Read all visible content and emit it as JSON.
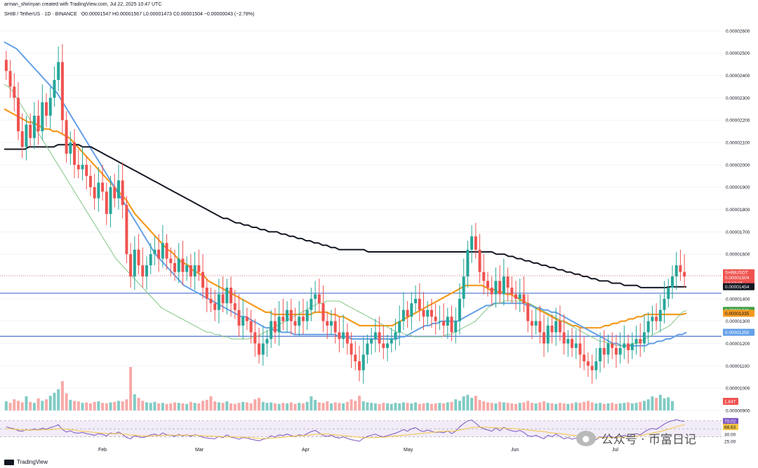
{
  "header": {
    "credit": "arman_shirinyan created with TradingView.com, Jul 22, 2025 10:47 UTC",
    "symbol_line": "SHIB / TetherUS · 1D · BINANCE",
    "ohlc": "O0.00001547 H0.00001567 L0.00001473 C0.00001504 −0.00000043 (−2.78%)"
  },
  "footer": {
    "brand": "TradingView"
  },
  "watermark": {
    "text": "公众号 · 币富日记"
  },
  "colors": {
    "up": "#26a69a",
    "down": "#ef5350",
    "up_volume": "#80cbc4",
    "down_volume": "#f7a9a7",
    "ma_fast": "#81c784",
    "ma_blue": "#64a0e8",
    "ma_orange": "#f59a1f",
    "ma_black": "#131722",
    "hline": "#5b7fd6",
    "rsi": "#7e57c2"
  },
  "price_labels": {
    "symbol": "SHIBUSDT",
    "last": "0.00001504",
    "countdown": "13:12:15",
    "ma200": "0.00001454",
    "ma_green": "0.00001348",
    "ma_orange": "0.00001335",
    "ma_blue": "0.00001250",
    "volume": "1.84T",
    "rsi_a": "70.02",
    "rsi_b": "68.63",
    "rsi_30": "30.00",
    "rsi_25": "25.00"
  },
  "chart_data": {
    "type": "candlestick",
    "title": "SHIB / TetherUS · 1D · BINANCE",
    "x_labels": [
      "Feb",
      "Mar",
      "Apr",
      "May",
      "Jun",
      "Jul"
    ],
    "y_ticks": [
      "0.00002600",
      "0.00002500",
      "0.00002400",
      "0.00002300",
      "0.00002200",
      "0.00002100",
      "0.00002000",
      "0.00001900",
      "0.00001800",
      "0.00001700",
      "0.00001600",
      "0.00001500",
      "0.00001400",
      "0.00001300",
      "0.00001200",
      "0.00001100",
      "0.00001000",
      "0.00000900"
    ],
    "ylim": [
      9e-06,
      2.65e-05
    ],
    "horizontal_lines": [
      1.425e-05,
      1.232e-05
    ],
    "closes": [
      2.42,
      2.35,
      2.3,
      2.15,
      2.08,
      2.18,
      2.12,
      2.22,
      2.15,
      2.28,
      2.22,
      2.3,
      2.38,
      2.46,
      2.2,
      2.05,
      2.1,
      2.0,
      1.98,
      2.0,
      1.95,
      1.9,
      1.85,
      1.92,
      1.88,
      1.78,
      1.9,
      1.85,
      1.93,
      1.82,
      1.6,
      1.5,
      1.62,
      1.55,
      1.5,
      1.55,
      1.6,
      1.62,
      1.58,
      1.65,
      1.58,
      1.56,
      1.52,
      1.58,
      1.52,
      1.55,
      1.5,
      1.55,
      1.52,
      1.45,
      1.4,
      1.38,
      1.35,
      1.42,
      1.38,
      1.45,
      1.38,
      1.35,
      1.28,
      1.32,
      1.3,
      1.25,
      1.2,
      1.15,
      1.2,
      1.22,
      1.3,
      1.25,
      1.32,
      1.3,
      1.35,
      1.3,
      1.28,
      1.32,
      1.3,
      1.35,
      1.4,
      1.42,
      1.38,
      1.3,
      1.28,
      1.3,
      1.25,
      1.22,
      1.25,
      1.2,
      1.15,
      1.12,
      1.08,
      1.15,
      1.2,
      1.22,
      1.25,
      1.2,
      1.18,
      1.2,
      1.22,
      1.25,
      1.3,
      1.35,
      1.32,
      1.38,
      1.4,
      1.35,
      1.32,
      1.35,
      1.32,
      1.3,
      1.3,
      1.28,
      1.32,
      1.25,
      1.3,
      1.4,
      1.5,
      1.62,
      1.68,
      1.62,
      1.52,
      1.48,
      1.45,
      1.42,
      1.48,
      1.42,
      1.5,
      1.45,
      1.42,
      1.4,
      1.42,
      1.38,
      1.3,
      1.28,
      1.3,
      1.25,
      1.2,
      1.28,
      1.25,
      1.3,
      1.25,
      1.2,
      1.22,
      1.18,
      1.2,
      1.15,
      1.12,
      1.1,
      1.08,
      1.12,
      1.18,
      1.15,
      1.2,
      1.18,
      1.15,
      1.18,
      1.2,
      1.17,
      1.2,
      1.22,
      1.2,
      1.25,
      1.3,
      1.32,
      1.3,
      1.35,
      1.4,
      1.45,
      1.5,
      1.55,
      1.52,
      1.5
    ],
    "series": [
      {
        "values": [
          2.25,
          2.24,
          2.23,
          2.22,
          2.21,
          2.2,
          2.19,
          2.19,
          2.18,
          2.17,
          2.16,
          2.16,
          2.15,
          2.15,
          2.14,
          2.13,
          2.12,
          2.1,
          2.08,
          2.06,
          2.04,
          2.02,
          2.0,
          1.98,
          1.96,
          1.94,
          1.92,
          1.9,
          1.88,
          1.86,
          1.84,
          1.81,
          1.78,
          1.76,
          1.74,
          1.72,
          1.7,
          1.68,
          1.66,
          1.64,
          1.62,
          1.61,
          1.59,
          1.57,
          1.56,
          1.55,
          1.53,
          1.52,
          1.51,
          1.5,
          1.48,
          1.47,
          1.46,
          1.45,
          1.44,
          1.43,
          1.42,
          1.41,
          1.4,
          1.39,
          1.38,
          1.37,
          1.36,
          1.35,
          1.34,
          1.34,
          1.33,
          1.33,
          1.33,
          1.33,
          1.33,
          1.33,
          1.33,
          1.33,
          1.33,
          1.33,
          1.34,
          1.34,
          1.34,
          1.34,
          1.33,
          1.33,
          1.32,
          1.32,
          1.31,
          1.3,
          1.29,
          1.28,
          1.28,
          1.28,
          1.28,
          1.28,
          1.28,
          1.28,
          1.28,
          1.28,
          1.29,
          1.3,
          1.31,
          1.32,
          1.33,
          1.34,
          1.35,
          1.36,
          1.37,
          1.38,
          1.39,
          1.4,
          1.41,
          1.42,
          1.43,
          1.44,
          1.45,
          1.46,
          1.46,
          1.46,
          1.46,
          1.46,
          1.45,
          1.44,
          1.44,
          1.43,
          1.43,
          1.42,
          1.42,
          1.41,
          1.4,
          1.39,
          1.38,
          1.37,
          1.36,
          1.35,
          1.34,
          1.33,
          1.32,
          1.31,
          1.3,
          1.3,
          1.29,
          1.28,
          1.28,
          1.27,
          1.27,
          1.27,
          1.27,
          1.27,
          1.27,
          1.28,
          1.28,
          1.29,
          1.29,
          1.3,
          1.3,
          1.31,
          1.31,
          1.32,
          1.32,
          1.33,
          1.33,
          1.33,
          1.33,
          1.33,
          1.33,
          1.33,
          1.33,
          1.33,
          1.33,
          1.335
        ]
      },
      {
        "values": [
          2.55,
          2.54,
          2.53,
          2.52,
          2.5,
          2.48,
          2.46,
          2.44,
          2.42,
          2.4,
          2.38,
          2.36,
          2.34,
          2.32,
          2.29,
          2.26,
          2.23,
          2.2,
          2.17,
          2.14,
          2.11,
          2.08,
          2.05,
          2.02,
          1.99,
          1.96,
          1.93,
          1.9,
          1.87,
          1.84,
          1.81,
          1.78,
          1.75,
          1.72,
          1.69,
          1.66,
          1.63,
          1.6,
          1.58,
          1.56,
          1.54,
          1.52,
          1.5,
          1.48,
          1.46,
          1.45,
          1.44,
          1.43,
          1.42,
          1.41,
          1.4,
          1.39,
          1.38,
          1.37,
          1.36,
          1.35,
          1.34,
          1.33,
          1.32,
          1.32,
          1.31,
          1.3,
          1.29,
          1.28,
          1.27,
          1.27,
          1.26,
          1.26,
          1.25,
          1.25,
          1.25,
          1.24,
          1.24,
          1.24,
          1.24,
          1.24,
          1.24,
          1.24,
          1.24,
          1.24,
          1.24,
          1.24,
          1.23,
          1.23,
          1.23,
          1.22,
          1.22,
          1.22,
          1.22,
          1.22,
          1.22,
          1.22,
          1.22,
          1.22,
          1.22,
          1.22,
          1.22,
          1.23,
          1.23,
          1.24,
          1.25,
          1.26,
          1.27,
          1.28,
          1.28,
          1.29,
          1.29,
          1.3,
          1.3,
          1.3,
          1.3,
          1.3,
          1.31,
          1.32,
          1.33,
          1.34,
          1.35,
          1.36,
          1.37,
          1.37,
          1.38,
          1.38,
          1.38,
          1.38,
          1.38,
          1.38,
          1.38,
          1.38,
          1.37,
          1.37,
          1.36,
          1.36,
          1.35,
          1.35,
          1.34,
          1.34,
          1.33,
          1.32,
          1.31,
          1.3,
          1.29,
          1.28,
          1.27,
          1.26,
          1.25,
          1.24,
          1.23,
          1.22,
          1.21,
          1.2,
          1.2,
          1.19,
          1.19,
          1.19,
          1.19,
          1.19,
          1.19,
          1.19,
          1.2,
          1.2,
          1.21,
          1.21,
          1.22,
          1.22,
          1.23,
          1.24,
          1.24,
          1.25
        ]
      },
      {
        "values": [
          2.07,
          2.07,
          2.07,
          2.07,
          2.07,
          2.07,
          2.08,
          2.08,
          2.08,
          2.08,
          2.08,
          2.08,
          2.08,
          2.09,
          2.09,
          2.09,
          2.09,
          2.09,
          2.09,
          2.08,
          2.08,
          2.08,
          2.07,
          2.06,
          2.05,
          2.04,
          2.03,
          2.02,
          2.01,
          2.0,
          1.99,
          1.98,
          1.97,
          1.96,
          1.95,
          1.94,
          1.93,
          1.92,
          1.91,
          1.9,
          1.89,
          1.88,
          1.87,
          1.86,
          1.85,
          1.84,
          1.83,
          1.82,
          1.81,
          1.8,
          1.79,
          1.78,
          1.77,
          1.76,
          1.76,
          1.75,
          1.74,
          1.74,
          1.73,
          1.73,
          1.72,
          1.72,
          1.71,
          1.71,
          1.7,
          1.7,
          1.7,
          1.69,
          1.69,
          1.68,
          1.68,
          1.67,
          1.67,
          1.66,
          1.66,
          1.65,
          1.65,
          1.64,
          1.64,
          1.63,
          1.63,
          1.62,
          1.62,
          1.62,
          1.62,
          1.62,
          1.62,
          1.62,
          1.61,
          1.61,
          1.61,
          1.61,
          1.61,
          1.61,
          1.61,
          1.61,
          1.61,
          1.61,
          1.61,
          1.61,
          1.61,
          1.61,
          1.61,
          1.61,
          1.61,
          1.61,
          1.61,
          1.61,
          1.61,
          1.61,
          1.61,
          1.61,
          1.61,
          1.61,
          1.61,
          1.61,
          1.61,
          1.61,
          1.61,
          1.6,
          1.6,
          1.6,
          1.59,
          1.59,
          1.58,
          1.58,
          1.57,
          1.57,
          1.56,
          1.56,
          1.55,
          1.55,
          1.54,
          1.54,
          1.53,
          1.53,
          1.52,
          1.52,
          1.51,
          1.51,
          1.5,
          1.5,
          1.49,
          1.49,
          1.48,
          1.48,
          1.48,
          1.47,
          1.47,
          1.47,
          1.46,
          1.46,
          1.46,
          1.46,
          1.45,
          1.45,
          1.45,
          1.45,
          1.45,
          1.45,
          1.45,
          1.454,
          1.454,
          1.454,
          1.454,
          1.454
        ]
      },
      {
        "values": [
          2.36,
          2.35,
          2.33,
          2.3,
          2.27,
          2.24,
          2.21,
          2.18,
          2.15,
          2.12,
          2.09,
          2.06,
          2.03,
          2.0,
          1.97,
          1.94,
          1.91,
          1.88,
          1.85,
          1.82,
          1.79,
          1.76,
          1.73,
          1.7,
          1.67,
          1.64,
          1.61,
          1.58,
          1.56,
          1.54,
          1.52,
          1.5,
          1.48,
          1.46,
          1.44,
          1.42,
          1.4,
          1.38,
          1.36,
          1.35,
          1.34,
          1.33,
          1.32,
          1.31,
          1.3,
          1.29,
          1.28,
          1.27,
          1.26,
          1.25,
          1.25,
          1.24,
          1.24,
          1.23,
          1.23,
          1.22,
          1.22,
          1.22,
          1.22,
          1.22,
          1.23,
          1.23,
          1.24,
          1.25,
          1.26,
          1.27,
          1.28,
          1.29,
          1.3,
          1.31,
          1.32,
          1.33,
          1.34,
          1.35,
          1.36,
          1.37,
          1.38,
          1.38,
          1.39,
          1.39,
          1.39,
          1.39,
          1.38,
          1.37,
          1.36,
          1.35,
          1.34,
          1.33,
          1.32,
          1.31,
          1.3,
          1.29,
          1.28,
          1.27,
          1.26,
          1.25,
          1.25,
          1.24,
          1.24,
          1.23,
          1.23,
          1.23,
          1.23,
          1.23,
          1.23,
          1.23,
          1.23,
          1.24,
          1.24,
          1.25,
          1.26,
          1.27,
          1.28,
          1.29,
          1.3,
          1.32,
          1.34,
          1.36,
          1.37,
          1.38,
          1.38,
          1.39,
          1.39,
          1.39,
          1.39,
          1.39,
          1.38,
          1.38,
          1.37,
          1.36,
          1.35,
          1.34,
          1.33,
          1.32,
          1.31,
          1.3,
          1.29,
          1.28,
          1.27,
          1.26,
          1.25,
          1.24,
          1.23,
          1.22,
          1.21,
          1.21,
          1.2,
          1.2,
          1.19,
          1.19,
          1.19,
          1.19,
          1.2,
          1.2,
          1.21,
          1.22,
          1.23,
          1.24,
          1.25,
          1.26,
          1.27,
          1.28,
          1.3,
          1.32,
          1.34,
          1.348
        ]
      }
    ],
    "volume": [
      1.8,
      1.5,
      2.2,
      1.9,
      1.6,
      2.8,
      1.7,
      1.5,
      2.4,
      1.9,
      2.2,
      2.9,
      3.5,
      4.2,
      5.8,
      3.4,
      2.1,
      1.9,
      1.8,
      1.5,
      1.6,
      1.4,
      1.7,
      1.8,
      1.5,
      1.4,
      1.6,
      1.7,
      1.9,
      1.8,
      2.2,
      8.6,
      3.2,
      2.5,
      1.9,
      1.6,
      1.5,
      1.7,
      1.4,
      1.5,
      1.3,
      1.4,
      1.6,
      1.5,
      1.4,
      1.3,
      1.7,
      1.5,
      1.4,
      1.9,
      2.1,
      2.8,
      1.8,
      1.6,
      1.5,
      1.8,
      1.4,
      1.3,
      1.5,
      1.7,
      1.6,
      1.4,
      2.2,
      2.5,
      1.7,
      1.5,
      1.6,
      1.4,
      1.3,
      1.5,
      1.4,
      1.6,
      1.3,
      1.5,
      1.4,
      1.7,
      2.8,
      2.1,
      1.6,
      1.5,
      1.8,
      1.4,
      1.6,
      1.5,
      1.4,
      1.7,
      2.2,
      1.9,
      2.9,
      1.8,
      1.6,
      1.5,
      1.4,
      1.3,
      1.5,
      1.4,
      1.3,
      1.5,
      1.4,
      1.6,
      1.5,
      1.4,
      1.6,
      1.3,
      1.4,
      1.5,
      1.3,
      1.4,
      1.5,
      1.4,
      1.6,
      1.7,
      2.2,
      1.9,
      2.8,
      3.1,
      2.5,
      2.9,
      2.1,
      1.8,
      1.6,
      1.5,
      1.4,
      1.7,
      1.6,
      1.5,
      1.4,
      1.3,
      1.5,
      1.6,
      1.9,
      1.5,
      1.4,
      1.6,
      1.8,
      1.5,
      1.4,
      1.3,
      1.5,
      1.4,
      1.3,
      1.4,
      1.6,
      1.5,
      1.7,
      1.9,
      1.6,
      1.4,
      1.5,
      1.3,
      1.4,
      1.5,
      1.3,
      1.4,
      1.5,
      1.6,
      1.4,
      1.5,
      1.7,
      1.9,
      2.2,
      2.8,
      2.5,
      3.1,
      2.4,
      2.6,
      1.84
    ],
    "rsi": [
      55,
      52,
      50,
      45,
      44,
      48,
      46,
      50,
      47,
      52,
      49,
      53,
      56,
      60,
      48,
      42,
      45,
      40,
      39,
      41,
      38,
      36,
      34,
      38,
      36,
      32,
      40,
      37,
      42,
      36,
      28,
      25,
      33,
      30,
      28,
      31,
      35,
      37,
      33,
      40,
      35,
      34,
      31,
      36,
      32,
      35,
      31,
      35,
      33,
      29,
      27,
      26,
      25,
      31,
      28,
      35,
      29,
      27,
      24,
      28,
      27,
      24,
      22,
      20,
      24,
      26,
      33,
      29,
      35,
      33,
      37,
      33,
      31,
      35,
      33,
      38,
      43,
      46,
      40,
      33,
      31,
      34,
      29,
      27,
      30,
      26,
      23,
      21,
      19,
      26,
      31,
      34,
      37,
      32,
      30,
      33,
      36,
      39,
      43,
      48,
      44,
      50,
      53,
      46,
      43,
      47,
      44,
      41,
      42,
      40,
      45,
      38,
      44,
      55,
      63,
      70,
      72,
      64,
      55,
      50,
      47,
      44,
      52,
      45,
      54,
      48,
      45,
      43,
      46,
      41,
      33,
      31,
      34,
      29,
      25,
      34,
      30,
      37,
      31,
      25,
      28,
      24,
      27,
      22,
      20,
      18,
      17,
      23,
      30,
      27,
      33,
      30,
      27,
      31,
      34,
      30,
      35,
      38,
      35,
      42,
      48,
      51,
      49,
      55,
      62,
      67,
      70,
      73,
      70,
      68.6
    ],
    "rsi_ma": [
      50,
      50,
      49,
      48,
      47,
      47,
      47,
      47,
      47,
      48,
      48,
      48,
      49,
      50,
      50,
      49,
      48,
      47,
      45,
      44,
      43,
      42,
      41,
      40,
      39,
      38,
      38,
      38,
      38,
      37,
      36,
      34,
      34,
      33,
      32,
      32,
      32,
      33,
      33,
      34,
      34,
      34,
      34,
      34,
      34,
      34,
      34,
      34,
      33,
      33,
      32,
      32,
      31,
      31,
      30,
      30,
      30,
      30,
      29,
      29,
      28,
      28,
      27,
      26,
      26,
      26,
      27,
      27,
      28,
      29,
      30,
      31,
      32,
      33,
      33,
      34,
      35,
      36,
      37,
      37,
      37,
      36,
      35,
      34,
      33,
      32,
      31,
      30,
      29,
      28,
      28,
      28,
      28,
      29,
      29,
      30,
      31,
      32,
      33,
      34,
      35,
      36,
      37,
      38,
      39,
      40,
      41,
      42,
      43,
      44,
      44,
      44,
      45,
      47,
      49,
      51,
      53,
      54,
      54,
      54,
      54,
      53,
      53,
      52,
      52,
      51,
      51,
      50,
      49,
      48,
      47,
      46,
      45,
      44,
      43,
      41,
      40,
      39,
      38,
      37,
      35,
      34,
      33,
      32,
      31,
      30,
      29,
      28,
      28,
      28,
      28,
      28,
      29,
      29,
      29,
      30,
      31,
      32,
      33,
      35,
      37,
      39,
      41,
      43,
      46,
      49,
      52,
      55,
      58,
      60
    ],
    "price_scale": "0.00001 units (values ×1e-5)"
  }
}
